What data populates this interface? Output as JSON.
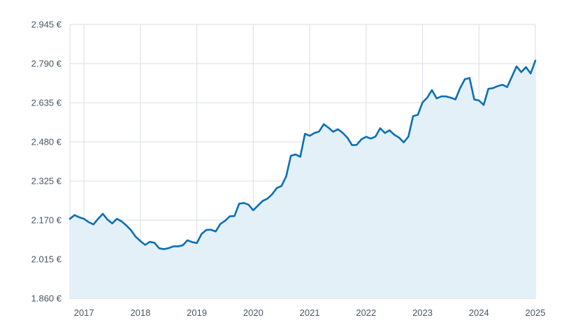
{
  "chart_data": {
    "type": "area",
    "title": "",
    "xlabel": "",
    "ylabel": "",
    "y_unit": "€",
    "ylim": [
      1860,
      2945
    ],
    "yticks": [
      {
        "value": 1860,
        "label": "1.860 €"
      },
      {
        "value": 2015,
        "label": "2.015 €"
      },
      {
        "value": 2170,
        "label": "2.170 €"
      },
      {
        "value": 2325,
        "label": "2.325 €"
      },
      {
        "value": 2480,
        "label": "2.480 €"
      },
      {
        "value": 2635,
        "label": "2.635 €"
      },
      {
        "value": 2790,
        "label": "2.790 €"
      },
      {
        "value": 2945,
        "label": "2.945 €"
      }
    ],
    "xlim": [
      "2016-10",
      "2025-01"
    ],
    "xticks": [
      {
        "value": "2017-01",
        "label": "2017"
      },
      {
        "value": "2018-01",
        "label": "2018"
      },
      {
        "value": "2019-01",
        "label": "2019"
      },
      {
        "value": "2020-01",
        "label": "2020"
      },
      {
        "value": "2021-01",
        "label": "2021"
      },
      {
        "value": "2022-01",
        "label": "2022"
      },
      {
        "value": "2023-01",
        "label": "2023"
      },
      {
        "value": "2024-01",
        "label": "2024"
      },
      {
        "value": "2025-01",
        "label": "2025"
      }
    ],
    "grid": true,
    "legend": "none",
    "colors": {
      "line": "#0a6fb5",
      "fill": "#e3f0f8",
      "grid": "#d9dde3",
      "text": "#4b5563"
    },
    "series": [
      {
        "x": [
          "2016-10",
          "2016-11",
          "2016-12",
          "2017-01",
          "2017-02",
          "2017-03",
          "2017-04",
          "2017-05",
          "2017-06",
          "2017-07",
          "2017-08",
          "2017-09",
          "2017-10",
          "2017-11",
          "2017-12",
          "2018-01",
          "2018-02",
          "2018-03",
          "2018-04",
          "2018-05",
          "2018-06",
          "2018-07",
          "2018-08",
          "2018-09",
          "2018-10",
          "2018-11",
          "2018-12",
          "2019-01",
          "2019-02",
          "2019-03",
          "2019-04",
          "2019-05",
          "2019-06",
          "2019-07",
          "2019-08",
          "2019-09",
          "2019-10",
          "2019-11",
          "2019-12",
          "2020-01",
          "2020-02",
          "2020-03",
          "2020-04",
          "2020-05",
          "2020-06",
          "2020-07",
          "2020-08",
          "2020-09",
          "2020-10",
          "2020-11",
          "2020-12",
          "2021-01",
          "2021-02",
          "2021-03",
          "2021-04",
          "2021-05",
          "2021-06",
          "2021-07",
          "2021-08",
          "2021-09",
          "2021-10",
          "2021-11",
          "2021-12",
          "2022-01",
          "2022-02",
          "2022-03",
          "2022-04",
          "2022-05",
          "2022-06",
          "2022-07",
          "2022-08",
          "2022-09",
          "2022-10",
          "2022-11",
          "2022-12",
          "2023-01",
          "2023-02",
          "2023-03",
          "2023-04",
          "2023-05",
          "2023-06",
          "2023-07",
          "2023-08",
          "2023-09",
          "2023-10",
          "2023-11",
          "2023-12",
          "2024-01",
          "2024-02",
          "2024-03",
          "2024-04",
          "2024-05",
          "2024-06",
          "2024-07",
          "2024-08",
          "2024-09",
          "2024-10",
          "2024-11",
          "2024-12",
          "2025-01"
        ],
        "values": [
          2175,
          2190,
          2181,
          2175,
          2162,
          2153,
          2175,
          2195,
          2172,
          2157,
          2175,
          2165,
          2149,
          2130,
          2104,
          2087,
          2072,
          2084,
          2080,
          2058,
          2055,
          2059,
          2066,
          2066,
          2070,
          2090,
          2083,
          2079,
          2115,
          2131,
          2132,
          2125,
          2155,
          2167,
          2185,
          2186,
          2235,
          2238,
          2231,
          2209,
          2228,
          2246,
          2255,
          2272,
          2297,
          2305,
          2343,
          2425,
          2430,
          2421,
          2512,
          2504,
          2515,
          2521,
          2550,
          2536,
          2520,
          2530,
          2516,
          2497,
          2467,
          2468,
          2490,
          2500,
          2493,
          2501,
          2534,
          2515,
          2526,
          2508,
          2497,
          2478,
          2501,
          2582,
          2587,
          2636,
          2655,
          2685,
          2652,
          2660,
          2660,
          2655,
          2648,
          2693,
          2728,
          2733,
          2648,
          2644,
          2626,
          2690,
          2693,
          2701,
          2706,
          2697,
          2738,
          2779,
          2756,
          2776,
          2751,
          2802
        ]
      }
    ]
  }
}
